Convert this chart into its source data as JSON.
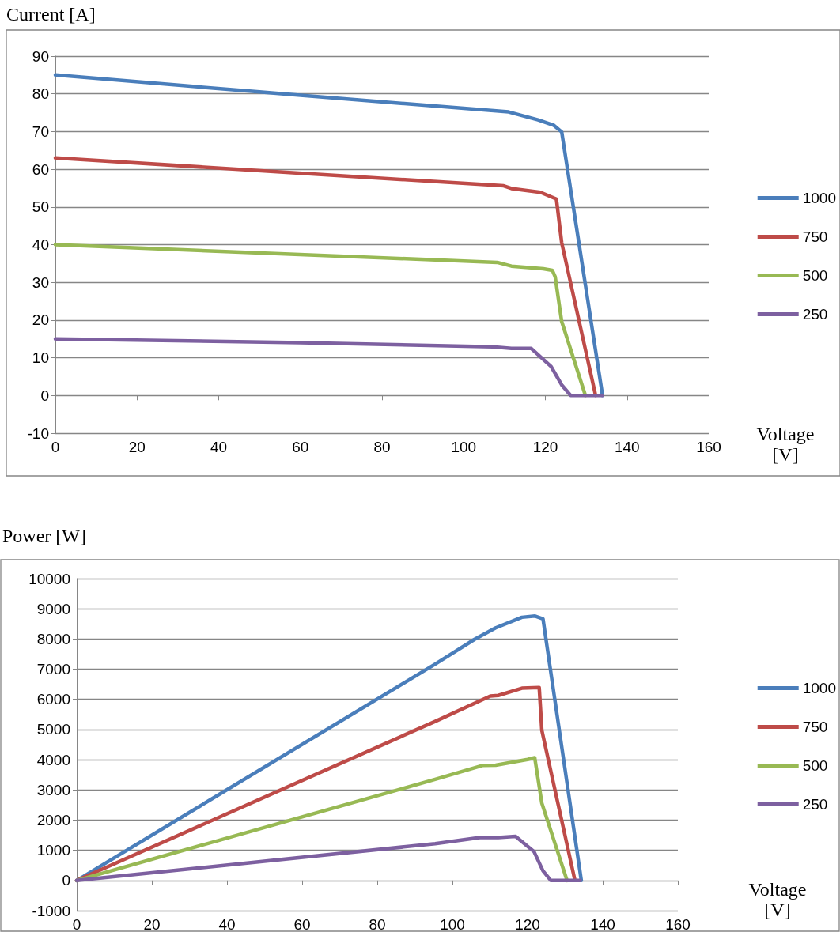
{
  "chart_data": [
    {
      "type": "line",
      "ylabel": "Current [A]",
      "xlabel": "Voltage [V]",
      "xlim": [
        0,
        160
      ],
      "xticks": [
        0,
        20,
        40,
        60,
        80,
        100,
        120,
        140,
        160
      ],
      "ylim": [
        -10,
        90
      ],
      "yticks": [
        -10,
        0,
        10,
        20,
        30,
        40,
        50,
        60,
        70,
        80,
        90
      ],
      "grid": "y",
      "legend": "right",
      "series": [
        {
          "name": "1000",
          "color": "#4a7ebb",
          "x": [
            0,
            50,
            60,
            111,
            118.2,
            122,
            124,
            134
          ],
          "values": [
            85,
            80.5,
            79.6,
            75.2,
            73.1,
            71.7,
            69.9,
            0
          ]
        },
        {
          "name": "750",
          "color": "#be4b48",
          "x": [
            0,
            109.8,
            111.7,
            118.8,
            122.7,
            124,
            132.3
          ],
          "values": [
            63,
            55.6,
            54.9,
            53.9,
            52.1,
            40.5,
            0
          ]
        },
        {
          "name": "500",
          "color": "#98b954",
          "x": [
            0,
            108.2,
            111.7,
            119.5,
            121.7,
            122.4,
            124,
            129.8
          ],
          "values": [
            40,
            35.3,
            34.3,
            33.6,
            33.2,
            31.5,
            19.6,
            0
          ]
        },
        {
          "name": "250",
          "color": "#7d60a0",
          "x": [
            0,
            60,
            107.1,
            111.7,
            116.5,
            121.4,
            124,
            126.2,
            134
          ],
          "values": [
            15,
            14,
            12.9,
            12.5,
            12.5,
            7.7,
            2.8,
            0,
            0
          ]
        }
      ]
    },
    {
      "type": "line",
      "ylabel": "Power [W]",
      "xlabel": "Voltage [V]",
      "xlim": [
        0,
        160
      ],
      "xticks": [
        0,
        20,
        40,
        60,
        80,
        100,
        120,
        140,
        160
      ],
      "ylim": [
        -1000,
        10000
      ],
      "yticks": [
        -1000,
        0,
        1000,
        2000,
        3000,
        4000,
        5000,
        6000,
        7000,
        8000,
        9000,
        10000
      ],
      "grid": "y",
      "legend": "right",
      "series": [
        {
          "name": "1000",
          "color": "#4a7ebb",
          "x": [
            0,
            95.4,
            105.9,
            111.5,
            118.5,
            122,
            124.1,
            134.3
          ],
          "values": [
            0,
            7170,
            7990,
            8370,
            8720,
            8760,
            8670,
            0
          ]
        },
        {
          "name": "750",
          "color": "#be4b48",
          "x": [
            0,
            95.4,
            110.1,
            112.2,
            118.5,
            123.1,
            123.8,
            132.6
          ],
          "values": [
            0,
            5270,
            6110,
            6130,
            6370,
            6390,
            4970,
            0
          ]
        },
        {
          "name": "500",
          "color": "#98b954",
          "x": [
            0,
            95.4,
            108,
            111.5,
            120,
            121.9,
            123.8,
            130.5
          ],
          "values": [
            0,
            3350,
            3810,
            3820,
            4010,
            4070,
            2560,
            0
          ]
        },
        {
          "name": "250",
          "color": "#7d60a0",
          "x": [
            0,
            95.4,
            107.3,
            112.2,
            116.8,
            121.7,
            124.1,
            126.2,
            134
          ],
          "values": [
            0,
            1220,
            1420,
            1420,
            1460,
            960,
            320,
            0,
            0
          ]
        }
      ]
    }
  ]
}
